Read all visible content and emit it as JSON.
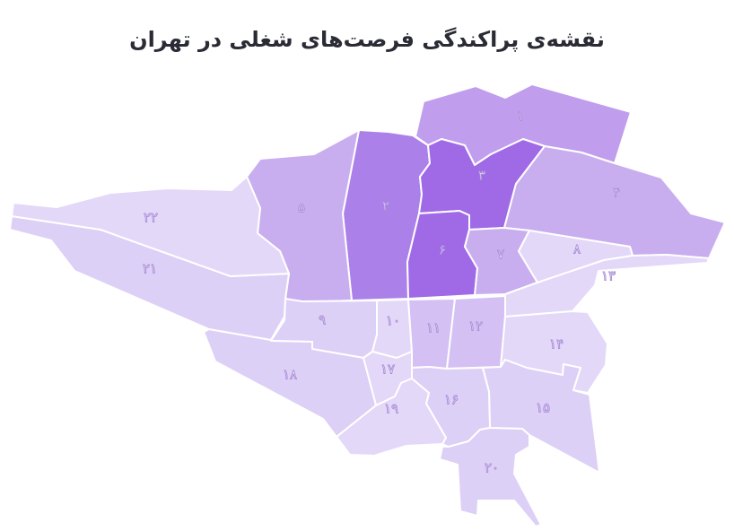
{
  "title": "نقشه‌ی پراکندگی فرصت‌های شغلی در تهران",
  "legend_colors": {
    "level5": "#a069e6",
    "level4": "#ab80e8",
    "level3": "#c09ded",
    "level2": "#c9aeef",
    "level1": "#d4c0f3",
    "level0b": "#ddd0f6",
    "level0": "#e3d8f8"
  },
  "districts": [
    {
      "id": 1,
      "label": "۱",
      "level": 3
    },
    {
      "id": 2,
      "label": "۲",
      "level": 4
    },
    {
      "id": 3,
      "label": "۳",
      "level": 5
    },
    {
      "id": 4,
      "label": "۴",
      "level": 2
    },
    {
      "id": 5,
      "label": "۵",
      "level": 2
    },
    {
      "id": 6,
      "label": "۶",
      "level": 5
    },
    {
      "id": 7,
      "label": "۷",
      "level": 2
    },
    {
      "id": 8,
      "label": "۸",
      "level": 0
    },
    {
      "id": 9,
      "label": "۹",
      "level": 0
    },
    {
      "id": 10,
      "label": "۱۰",
      "level": 0
    },
    {
      "id": 11,
      "label": "۱۱",
      "level": 1
    },
    {
      "id": 12,
      "label": "۱۲",
      "level": 1
    },
    {
      "id": 13,
      "label": "۱۳",
      "level": 0
    },
    {
      "id": 14,
      "label": "۱۴",
      "level": 0
    },
    {
      "id": 15,
      "label": "۱۵",
      "level": 0
    },
    {
      "id": 16,
      "label": "۱۶",
      "level": 0
    },
    {
      "id": 17,
      "label": "۱۷",
      "level": 0
    },
    {
      "id": 18,
      "label": "۱۸",
      "level": 0
    },
    {
      "id": 19,
      "label": "۱۹",
      "level": 0
    },
    {
      "id": 20,
      "label": "۲۰",
      "level": 0
    },
    {
      "id": 21,
      "label": "۲۱",
      "level": 0
    },
    {
      "id": 22,
      "label": "۲۲",
      "level": 0
    }
  ]
}
